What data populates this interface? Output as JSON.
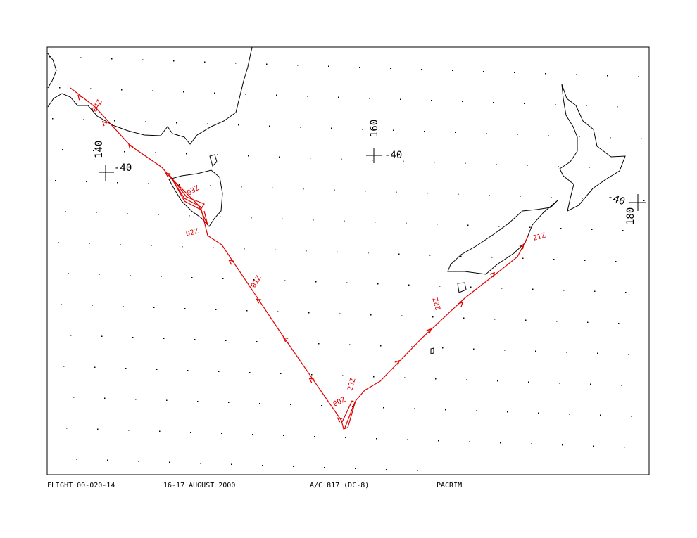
{
  "footer": {
    "flight": "FLIGHT 00-020-14",
    "date": "16-17 AUGUST 2000",
    "aircraft": "A/C 817 (DC-8)",
    "mission": "PACRIM"
  },
  "grid_labels": [
    {
      "lon": "140",
      "lat": "-40"
    },
    {
      "lon": "160",
      "lat": "-40"
    },
    {
      "lon": "180",
      "lat": "-40"
    }
  ],
  "time_labels": [
    "04Z",
    "03Z",
    "02Z",
    "01Z",
    "00Z",
    "23Z",
    "22Z",
    "21Z"
  ]
}
